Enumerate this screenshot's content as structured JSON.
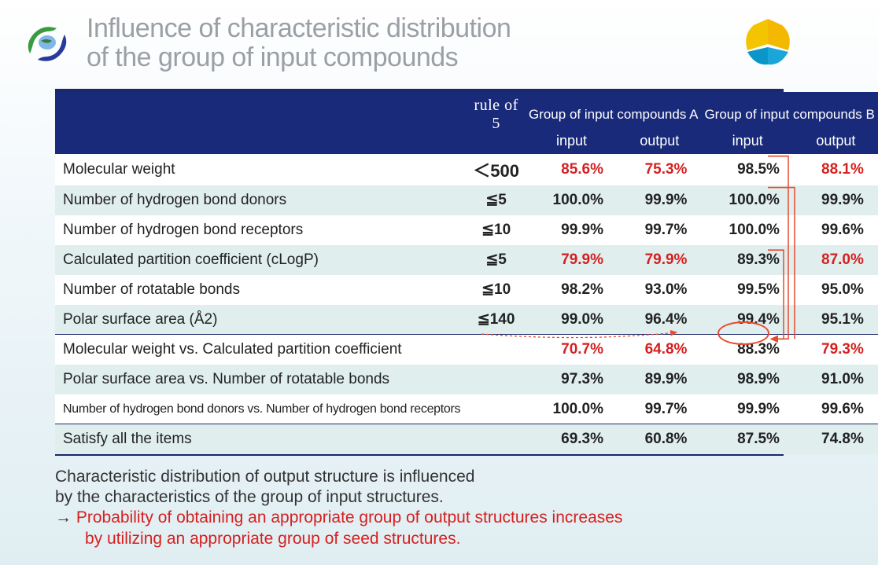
{
  "title_line1": "Influence of characteristic distribution",
  "title_line2": "of the group of input compounds",
  "header": {
    "rule_of_5": "rule of 5",
    "group_a": "Group of input compounds A",
    "group_b": "Group of input compounds B",
    "input": "input",
    "output": "output"
  },
  "rows": [
    {
      "label": "Molecular weight",
      "rule": "＜500",
      "a_in": "85.6%",
      "a_out": "75.3%",
      "b_in": "98.5%",
      "b_out": "88.1%",
      "hl": [
        "a_in",
        "a_out",
        "b_out"
      ],
      "big_rule": true
    },
    {
      "label": "Number of hydrogen bond donors",
      "rule": "≦5",
      "a_in": "100.0%",
      "a_out": "99.9%",
      "b_in": "100.0%",
      "b_out": "99.9%",
      "hl": []
    },
    {
      "label": "Number of hydrogen bond receptors",
      "rule": "≦10",
      "a_in": "99.9%",
      "a_out": "99.7%",
      "b_in": "100.0%",
      "b_out": "99.6%",
      "hl": []
    },
    {
      "label": "Calculated partition coefficient (cLogP)",
      "rule": "≦5",
      "a_in": "79.9%",
      "a_out": "79.9%",
      "b_in": "89.3%",
      "b_out": "87.0%",
      "hl": [
        "a_in",
        "a_out",
        "b_out"
      ]
    },
    {
      "label": "Number of rotatable bonds",
      "rule": "≦10",
      "a_in": "98.2%",
      "a_out": "93.0%",
      "b_in": "99.5%",
      "b_out": "95.0%",
      "hl": []
    },
    {
      "label": "Polar surface area (Å2)",
      "rule": "≦140",
      "a_in": "99.0%",
      "a_out": "96.4%",
      "b_in": "99.4%",
      "b_out": "95.1%",
      "hl": []
    },
    {
      "label": "Molecular weight vs. Calculated partition coefficient",
      "rule": "",
      "a_in": "70.7%",
      "a_out": "64.8%",
      "b_in": "88.3%",
      "b_out": "79.3%",
      "hl": [
        "a_in",
        "a_out",
        "b_out"
      ],
      "sep": true
    },
    {
      "label": "Polar surface area vs. Number of rotatable bonds",
      "rule": "",
      "a_in": "97.3%",
      "a_out": "89.9%",
      "b_in": "98.9%",
      "b_out": "91.0%",
      "hl": []
    },
    {
      "label": "Number of hydrogen bond donors vs. Number of hydrogen bond receptors",
      "rule": "",
      "a_in": "100.0%",
      "a_out": "99.7%",
      "b_in": "99.9%",
      "b_out": "99.6%",
      "hl": [],
      "small": true
    },
    {
      "label": "Satisfy all the items",
      "rule": "",
      "a_in": "69.3%",
      "a_out": "60.8%",
      "b_in": "87.5%",
      "b_out": "74.8%",
      "hl": [],
      "sep": true
    }
  ],
  "footer": {
    "line1": "Characteristic distribution of output structure is influenced",
    "line2": "by the characteristics of the group of input structures.",
    "arrow": "→",
    "concl1": "Probability of obtaining an appropriate group of output structures increases",
    "concl2": "by utilizing an appropriate group of seed structures."
  },
  "colors": {
    "header_bg": "#1a2a7a",
    "border": "#1a2968",
    "row_odd": "#e0eeee",
    "highlight": "#d62020",
    "annot": "#e84a2e"
  },
  "col_widths_pct": [
    45,
    11,
    11,
    11,
    11,
    11
  ]
}
